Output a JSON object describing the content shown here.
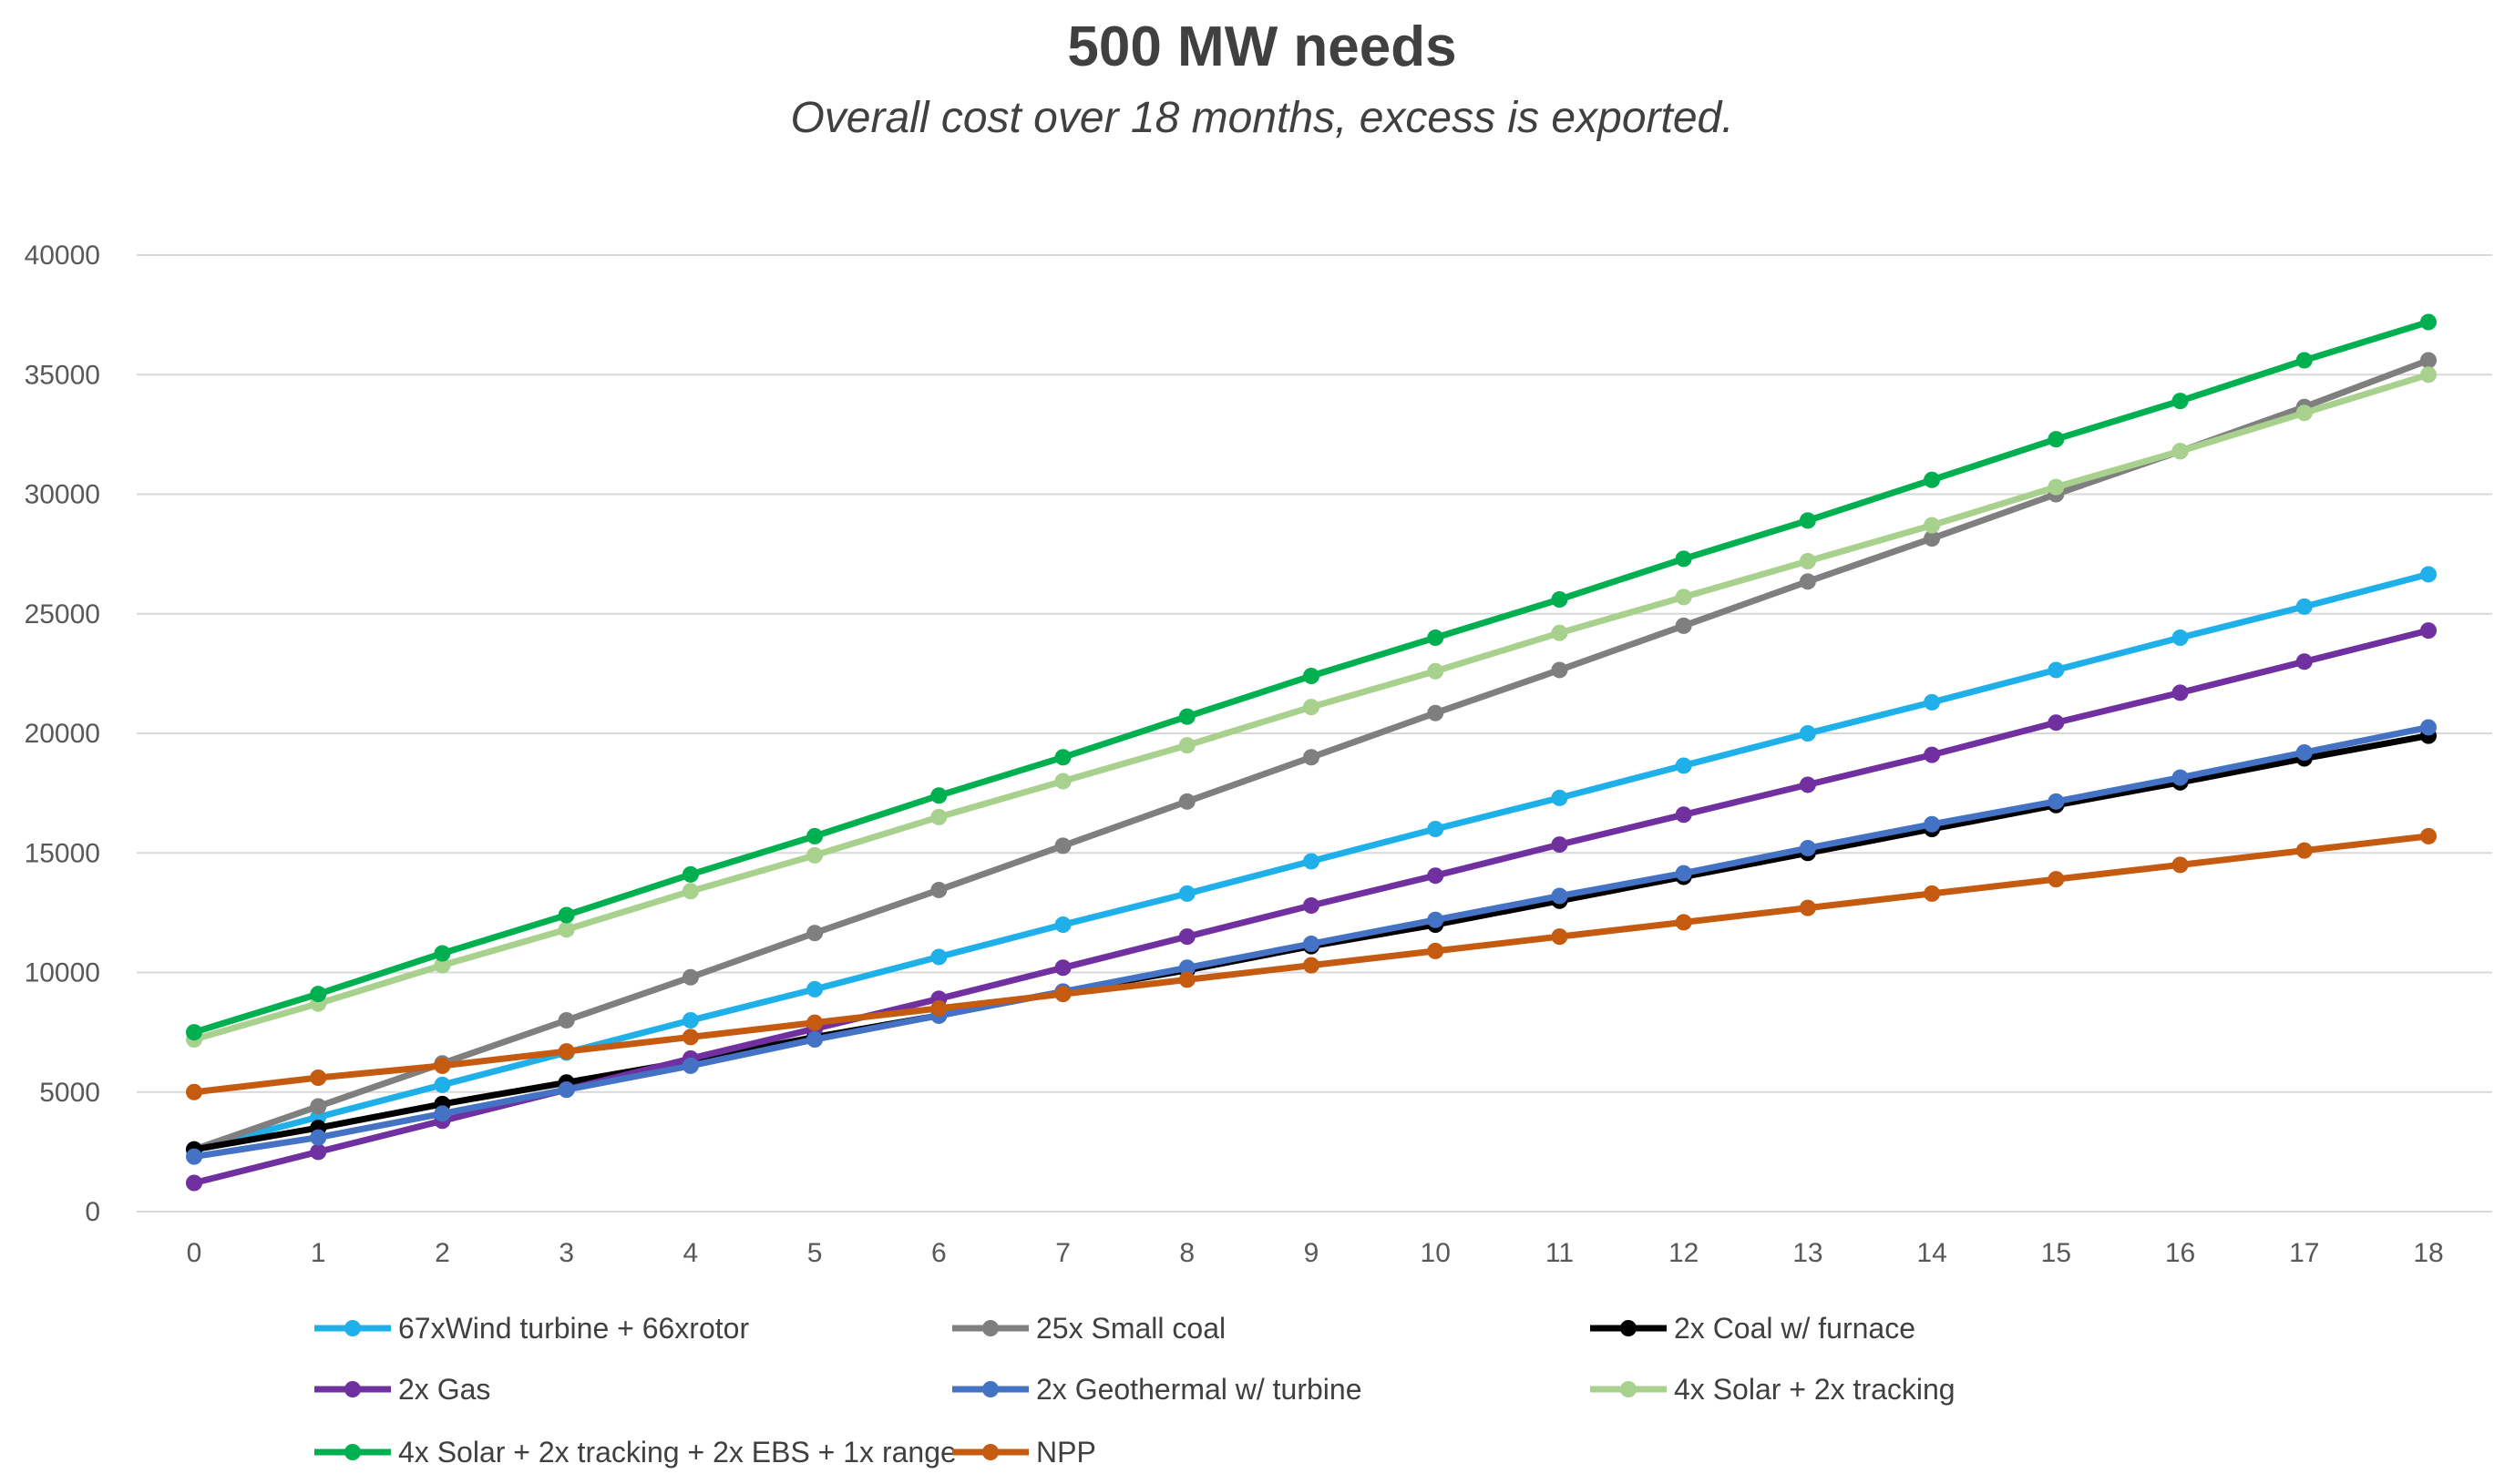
{
  "chart_data": {
    "type": "line",
    "title": "500 MW needs",
    "subtitle": "Overall cost over 18 months, excess is exported.",
    "xlabel": "",
    "ylabel": "",
    "x": [
      0,
      1,
      2,
      3,
      4,
      5,
      6,
      7,
      8,
      9,
      10,
      11,
      12,
      13,
      14,
      15,
      16,
      17,
      18
    ],
    "ylim": [
      0,
      40000
    ],
    "yticks": [
      0,
      5000,
      10000,
      15000,
      20000,
      25000,
      30000,
      35000,
      40000
    ],
    "grid": true,
    "legend_position": "bottom",
    "series": [
      {
        "name": "67xWind turbine + 66xrotor",
        "color": "#1fb0ea",
        "values": [
          2600,
          3950,
          5300,
          6650,
          8000,
          9300,
          10650,
          12000,
          13300,
          14650,
          16000,
          17300,
          18650,
          20000,
          21300,
          22650,
          24000,
          25300,
          26650
        ]
      },
      {
        "name": "25x Small coal",
        "color": "#7f7f7f",
        "values": [
          2600,
          4400,
          6200,
          8000,
          9800,
          11650,
          13450,
          15300,
          17150,
          19000,
          20850,
          22650,
          24500,
          26350,
          28150,
          30000,
          31800,
          33650,
          35600
        ]
      },
      {
        "name": "2x Coal w/ furnace",
        "color": "#000000",
        "values": [
          2600,
          3500,
          4500,
          5400,
          6300,
          7300,
          8200,
          9200,
          10100,
          11100,
          12000,
          13000,
          14000,
          15000,
          16000,
          17000,
          17950,
          18950,
          19900
        ]
      },
      {
        "name": "2x Gas",
        "color": "#7030a0",
        "values": [
          1200,
          2500,
          3800,
          5100,
          6400,
          7650,
          8900,
          10200,
          11500,
          12800,
          14050,
          15350,
          16600,
          17850,
          19100,
          20450,
          21700,
          23000,
          24300
        ]
      },
      {
        "name": "2x Geothermal w/ turbine",
        "color": "#4472c4",
        "values": [
          2300,
          3100,
          4100,
          5100,
          6100,
          7200,
          8200,
          9200,
          10200,
          11200,
          12200,
          13200,
          14150,
          15200,
          16200,
          17150,
          18150,
          19200,
          20250
        ]
      },
      {
        "name": "4x Solar + 2x tracking",
        "color": "#a9d18e",
        "values": [
          7200,
          8700,
          10300,
          11800,
          13400,
          14900,
          16500,
          18000,
          19500,
          21100,
          22600,
          24200,
          25700,
          27200,
          28700,
          30300,
          31800,
          33400,
          35000
        ]
      },
      {
        "name": "4x Solar + 2x tracking + 2x EBS + 1x range",
        "color": "#00b050",
        "values": [
          7500,
          9100,
          10800,
          12400,
          14100,
          15700,
          17400,
          19000,
          20700,
          22400,
          24000,
          25600,
          27300,
          28900,
          30600,
          32300,
          33900,
          35600,
          37200
        ]
      },
      {
        "name": "NPP",
        "color": "#c55a11",
        "values": [
          5000,
          5600,
          6100,
          6700,
          7300,
          7900,
          8500,
          9100,
          9700,
          10300,
          10900,
          11500,
          12100,
          12700,
          13300,
          13900,
          14500,
          15100,
          15700
        ]
      }
    ]
  }
}
